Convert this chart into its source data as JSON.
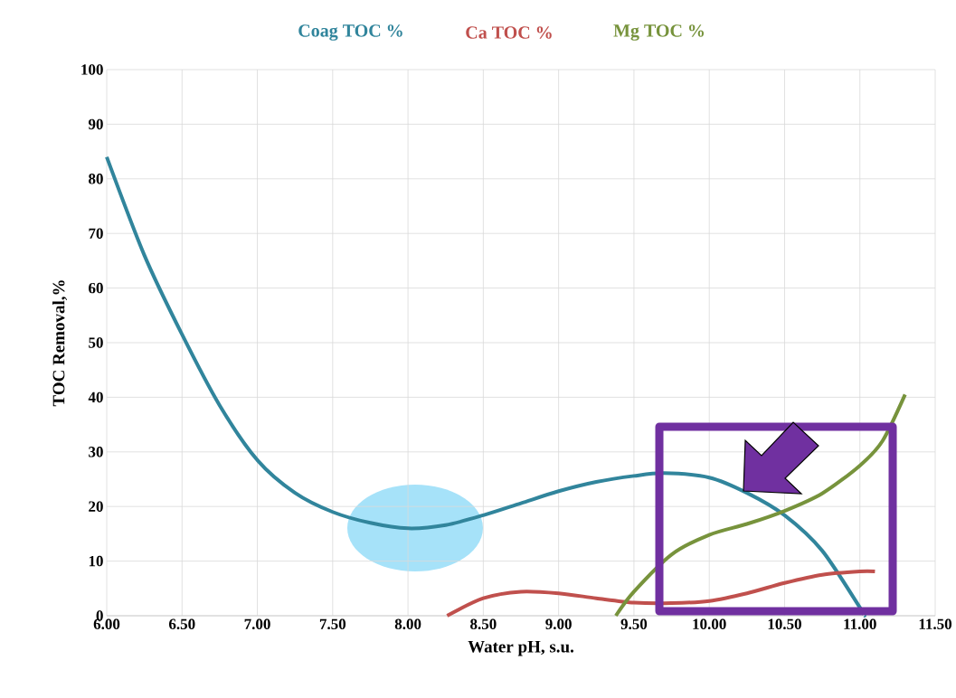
{
  "chart_data": {
    "type": "line",
    "xlabel": "Water pH, s.u.",
    "ylabel": "TOC Removal,%",
    "xlim": [
      6,
      11.5
    ],
    "xticks": [
      {
        "value": 6,
        "label": "6.00"
      },
      {
        "value": 6.5,
        "label": "6.50"
      },
      {
        "value": 7,
        "label": "7.00"
      },
      {
        "value": 7.5,
        "label": "7.50"
      },
      {
        "value": 8,
        "label": "8.00"
      },
      {
        "value": 8.5,
        "label": "8.50"
      },
      {
        "value": 9,
        "label": "9.00"
      },
      {
        "value": 9.5,
        "label": "9.50"
      },
      {
        "value": 10,
        "label": "10.00"
      },
      {
        "value": 10.5,
        "label": "10.50"
      },
      {
        "value": 11,
        "label": "11.00"
      },
      {
        "value": 11.5,
        "label": "11.50"
      }
    ],
    "ylim": [
      0,
      100
    ],
    "yticks": [
      0,
      10,
      20,
      30,
      40,
      50,
      60,
      70,
      80,
      90,
      100
    ],
    "grid": true,
    "legend": "top",
    "marker": "none",
    "line_style": "solid",
    "series": [
      {
        "name": "Coag TOC %",
        "color": "#31859c",
        "x": [
          6.0,
          6.25,
          6.5,
          6.75,
          7.0,
          7.25,
          7.5,
          7.75,
          8.0,
          8.25,
          8.5,
          8.75,
          9.0,
          9.25,
          9.5,
          9.7,
          10.0,
          10.25,
          10.5,
          10.75,
          11.0,
          11.03
        ],
        "values": [
          84,
          66,
          51.5,
          38.5,
          28.5,
          22.5,
          19,
          17,
          16,
          16.6,
          18.4,
          20.6,
          22.8,
          24.5,
          25.6,
          26.1,
          25.3,
          22.5,
          18.4,
          11.9,
          1.5,
          0
        ]
      },
      {
        "name": "Ca TOC %",
        "color": "#c0504d",
        "x": [
          8.26,
          8.5,
          8.75,
          9.0,
          9.25,
          9.5,
          9.75,
          10.0,
          10.25,
          10.5,
          10.75,
          11.0,
          11.1
        ],
        "values": [
          0,
          3.2,
          4.4,
          4.1,
          3.2,
          2.4,
          2.3,
          2.7,
          4.1,
          6.0,
          7.5,
          8.1,
          8.1
        ]
      },
      {
        "name": "Mg TOC %",
        "color": "#77933c",
        "x": [
          9.38,
          9.5,
          9.75,
          10.0,
          10.25,
          10.5,
          10.75,
          11.0,
          11.15,
          11.3
        ],
        "values": [
          0,
          4.4,
          11.2,
          14.8,
          16.8,
          19.2,
          22.4,
          27.5,
          32,
          40.5
        ]
      }
    ]
  }
}
